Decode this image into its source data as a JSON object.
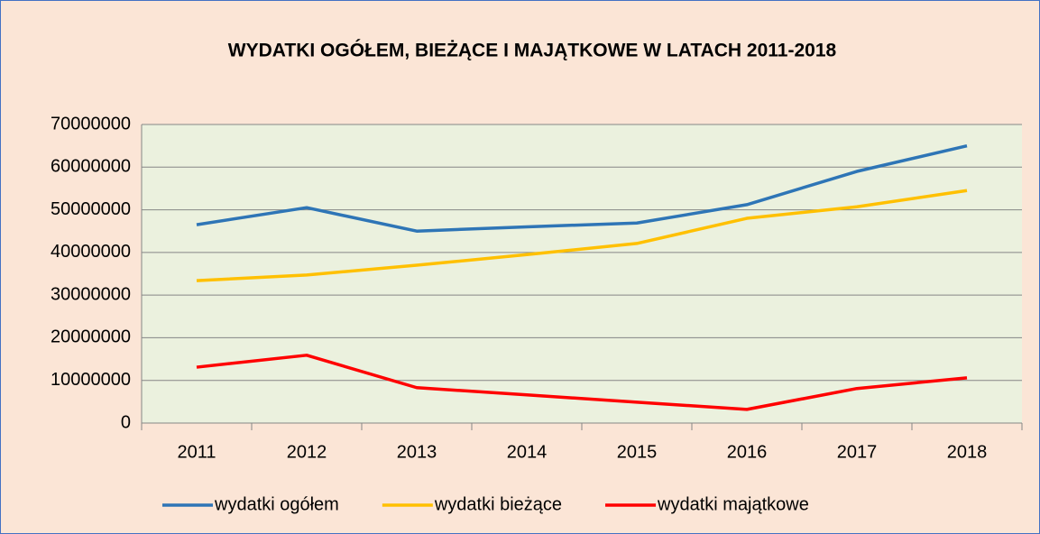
{
  "chart_data": {
    "type": "line",
    "title": "WYDATKI OGÓŁEM, BIEŻĄCE I MAJĄTKOWE W LATACH 2011-2018",
    "categories": [
      "2011",
      "2012",
      "2013",
      "2014",
      "2015",
      "2016",
      "2017",
      "2018"
    ],
    "series": [
      {
        "name": "wydatki ogółem",
        "color": "#2e75b6",
        "values": [
          46500000,
          50500000,
          45000000,
          46000000,
          46900000,
          51200000,
          59000000,
          65000000
        ]
      },
      {
        "name": "wydatki bieżące",
        "color": "#ffc000",
        "values": [
          33400000,
          34700000,
          37000000,
          39500000,
          42100000,
          48000000,
          50700000,
          54500000
        ]
      },
      {
        "name": "wydatki majątkowe",
        "color": "#ff0000",
        "values": [
          13100000,
          15900000,
          8300000,
          6600000,
          4900000,
          3200000,
          8100000,
          10600000
        ]
      }
    ],
    "ylim": [
      0,
      70000000
    ],
    "yticks": [
      0,
      10000000,
      20000000,
      30000000,
      40000000,
      50000000,
      60000000,
      70000000
    ],
    "grid": true,
    "legend": "bottom"
  }
}
